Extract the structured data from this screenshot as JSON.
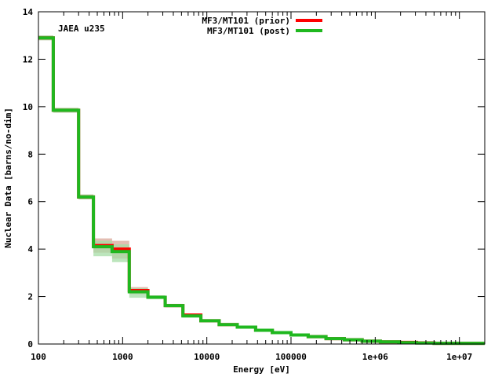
{
  "chart_data": {
    "type": "line",
    "step": true,
    "annotation": "JAEA u235",
    "xlabel": "Energy [eV]",
    "ylabel": "Nuclear Data [barns/no-dim]",
    "xscale": "log",
    "xlim": [
      100,
      20000000
    ],
    "ylim": [
      0,
      14
    ],
    "x_ticks": [
      100,
      1000,
      10000,
      100000,
      1000000,
      10000000
    ],
    "x_tick_labels": [
      "100",
      "1000",
      "10000",
      "100000",
      "1e+06",
      "1e+07"
    ],
    "y_ticks": [
      0,
      2,
      4,
      6,
      8,
      10,
      12,
      14
    ],
    "y_tick_labels": [
      "0",
      "2",
      "4",
      "6",
      "8",
      "10",
      "12",
      "14"
    ],
    "legend_position": "top-center",
    "bin_edges": [
      100,
      150,
      300,
      450,
      750,
      1200,
      2000,
      3200,
      5200,
      8500,
      14000,
      23000,
      38000,
      60000,
      100000,
      160000,
      260000,
      430000,
      700000,
      1150000,
      1900000,
      3100000,
      5000000,
      20000000
    ],
    "series": [
      {
        "name": "MF3/MT101 (prior)",
        "color": "#ff0000",
        "band_color": "#d9a79a",
        "values": [
          12.9,
          9.85,
          6.2,
          4.15,
          4.0,
          2.25,
          1.97,
          1.62,
          1.22,
          0.98,
          0.82,
          0.71,
          0.58,
          0.48,
          0.38,
          0.31,
          0.23,
          0.18,
          0.12,
          0.09,
          0.07,
          0.05,
          0.03
        ],
        "band_lower": [
          12.8,
          9.75,
          6.1,
          3.85,
          3.6,
          2.1,
          1.9,
          1.55,
          1.15,
          0.93,
          0.78,
          0.68,
          0.55,
          0.45,
          0.36,
          0.29,
          0.21,
          0.16,
          0.11,
          0.08,
          0.06,
          0.04,
          0.02
        ],
        "band_upper": [
          13.0,
          9.95,
          6.3,
          4.45,
          4.35,
          2.4,
          2.05,
          1.69,
          1.29,
          1.03,
          0.86,
          0.74,
          0.61,
          0.51,
          0.4,
          0.33,
          0.25,
          0.2,
          0.13,
          0.1,
          0.08,
          0.06,
          0.04
        ]
      },
      {
        "name": "MF3/MT101 (post)",
        "color": "#1fb81f",
        "band_color": "#a6dca6",
        "values": [
          12.9,
          9.85,
          6.2,
          4.1,
          3.9,
          2.2,
          1.97,
          1.62,
          1.18,
          0.98,
          0.82,
          0.71,
          0.58,
          0.48,
          0.38,
          0.31,
          0.23,
          0.18,
          0.12,
          0.09,
          0.06,
          0.04,
          0.03
        ],
        "band_lower": [
          12.8,
          9.75,
          6.1,
          3.7,
          3.45,
          1.95,
          1.9,
          1.55,
          1.12,
          0.93,
          0.78,
          0.68,
          0.55,
          0.45,
          0.36,
          0.29,
          0.21,
          0.16,
          0.11,
          0.08,
          0.05,
          0.03,
          0.02
        ],
        "band_upper": [
          13.0,
          9.95,
          6.3,
          4.35,
          4.2,
          2.35,
          2.05,
          1.69,
          1.24,
          1.03,
          0.86,
          0.74,
          0.61,
          0.51,
          0.4,
          0.33,
          0.25,
          0.2,
          0.13,
          0.1,
          0.07,
          0.05,
          0.04
        ]
      }
    ]
  }
}
